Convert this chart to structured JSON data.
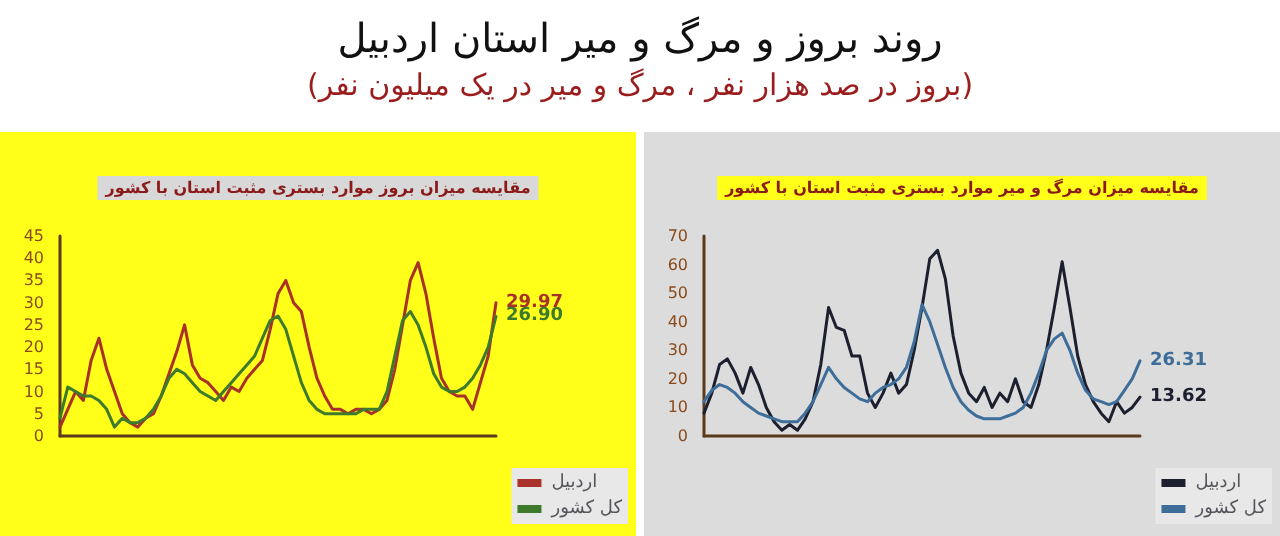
{
  "chart_data": [
    {
      "type": "other",
      "title": "روند بروز و مرگ و میر استان اردبیل",
      "subtitle": "(بروز در صد هزار نفر ، مرگ و میر در یک میلیون نفر)"
    },
    {
      "type": "line",
      "title": "مقایسه میزان بروز موارد بستری مثبت استان با کشور",
      "categories": [
        null,
        null,
        null,
        null,
        null,
        null,
        null,
        null,
        null,
        null,
        null,
        null,
        null,
        null,
        null,
        null,
        null,
        null,
        null,
        null,
        null,
        null,
        null,
        null,
        null,
        null,
        null,
        null,
        null,
        null,
        null,
        null,
        null,
        null,
        null,
        null,
        null,
        null,
        null,
        null,
        null,
        null,
        null,
        null,
        null,
        null,
        null,
        null,
        null,
        null,
        null,
        null,
        null,
        null,
        null,
        null,
        null
      ],
      "series": [
        {
          "name": "اردبیل",
          "color": "#a8322a",
          "values": [
            2,
            6,
            10,
            8,
            17,
            22,
            15,
            10,
            5,
            3,
            2,
            4,
            5,
            9,
            14,
            19,
            25,
            16,
            13,
            12,
            10,
            8,
            11,
            10,
            13,
            15,
            17,
            24,
            32,
            35,
            30,
            28,
            20,
            13,
            9,
            6,
            6,
            5,
            6,
            6,
            5,
            6,
            8,
            15,
            25,
            35,
            39,
            32,
            22,
            13,
            10,
            9,
            9,
            6,
            12,
            18,
            29.97
          ],
          "value_labels": [
            null,
            null,
            null,
            null,
            null,
            null,
            null,
            null,
            null,
            null,
            null,
            null,
            null,
            null,
            null,
            null,
            null,
            null,
            null,
            null,
            null,
            null,
            null,
            null,
            null,
            null,
            null,
            null,
            null,
            null,
            null,
            null,
            null,
            null,
            null,
            null,
            null,
            null,
            null,
            null,
            null,
            null,
            null,
            null,
            null,
            null,
            null,
            null,
            null,
            null,
            null,
            null,
            null,
            null,
            null,
            null,
            "29.97"
          ]
        },
        {
          "name": "کل کشور",
          "color": "#3d7a2c",
          "values": [
            4,
            11,
            10,
            9,
            9,
            8,
            6,
            2,
            4,
            3,
            3,
            4,
            6,
            9,
            13,
            15,
            14,
            12,
            10,
            9,
            8,
            10,
            12,
            14,
            16,
            18,
            22,
            26,
            27,
            24,
            18,
            12,
            8,
            6,
            5,
            5,
            5,
            5,
            5,
            6,
            6,
            6,
            10,
            18,
            26,
            28,
            25,
            20,
            14,
            11,
            10,
            10,
            11,
            13,
            16,
            20,
            26.9
          ],
          "value_labels": [
            null,
            null,
            null,
            null,
            null,
            null,
            null,
            null,
            null,
            null,
            null,
            null,
            null,
            null,
            null,
            null,
            null,
            null,
            null,
            null,
            null,
            null,
            null,
            null,
            null,
            null,
            null,
            null,
            null,
            null,
            null,
            null,
            null,
            null,
            null,
            null,
            null,
            null,
            null,
            null,
            null,
            null,
            null,
            null,
            null,
            null,
            null,
            null,
            null,
            null,
            null,
            null,
            null,
            null,
            null,
            null,
            "26.90"
          ]
        }
      ],
      "ylim": [
        0,
        45
      ],
      "yticks": [
        0,
        5,
        10,
        15,
        20,
        25,
        30,
        35,
        40,
        45
      ],
      "tick_labels": "y",
      "legend": "bottom right",
      "marker": "none",
      "line_style": "solid"
    },
    {
      "type": "line",
      "title": "مقایسه میزان مرگ و میر موارد بستری مثبت استان با کشور",
      "categories": [
        null,
        null,
        null,
        null,
        null,
        null,
        null,
        null,
        null,
        null,
        null,
        null,
        null,
        null,
        null,
        null,
        null,
        null,
        null,
        null,
        null,
        null,
        null,
        null,
        null,
        null,
        null,
        null,
        null,
        null,
        null,
        null,
        null,
        null,
        null,
        null,
        null,
        null,
        null,
        null,
        null,
        null,
        null,
        null,
        null,
        null,
        null,
        null,
        null,
        null,
        null,
        null,
        null,
        null,
        null,
        null,
        null
      ],
      "series": [
        {
          "name": "اردبیل",
          "color": "#1c1f2e",
          "values": [
            8,
            15,
            25,
            27,
            22,
            15,
            24,
            18,
            10,
            5,
            2,
            4,
            2,
            6,
            12,
            25,
            45,
            38,
            37,
            28,
            28,
            15,
            10,
            15,
            22,
            15,
            18,
            30,
            45,
            62,
            65,
            55,
            35,
            22,
            15,
            12,
            17,
            10,
            15,
            12,
            20,
            12,
            10,
            18,
            30,
            45,
            61,
            45,
            28,
            18,
            12,
            8,
            5,
            12,
            8,
            10,
            13.62
          ],
          "value_labels": [
            null,
            null,
            null,
            null,
            null,
            null,
            null,
            null,
            null,
            null,
            null,
            null,
            null,
            null,
            null,
            null,
            null,
            null,
            null,
            null,
            null,
            null,
            null,
            null,
            null,
            null,
            null,
            null,
            null,
            null,
            null,
            null,
            null,
            null,
            null,
            null,
            null,
            null,
            null,
            null,
            null,
            null,
            null,
            null,
            null,
            null,
            null,
            null,
            null,
            null,
            null,
            null,
            null,
            null,
            null,
            null,
            "13.62"
          ]
        },
        {
          "name": "کل کشور",
          "color": "#3d6d98",
          "values": [
            12,
            16,
            18,
            17,
            15,
            12,
            10,
            8,
            7,
            6,
            5,
            5,
            5,
            8,
            12,
            18,
            24,
            20,
            17,
            15,
            13,
            12,
            15,
            17,
            18,
            20,
            24,
            33,
            46,
            40,
            32,
            24,
            17,
            12,
            9,
            7,
            6,
            6,
            6,
            7,
            8,
            10,
            15,
            22,
            30,
            34,
            36,
            30,
            22,
            16,
            13,
            12,
            11,
            12,
            16,
            20,
            26.31
          ],
          "value_labels": [
            null,
            null,
            null,
            null,
            null,
            null,
            null,
            null,
            null,
            null,
            null,
            null,
            null,
            null,
            null,
            null,
            null,
            null,
            null,
            null,
            null,
            null,
            null,
            null,
            null,
            null,
            null,
            null,
            null,
            null,
            null,
            null,
            null,
            null,
            null,
            null,
            null,
            null,
            null,
            null,
            null,
            null,
            null,
            null,
            null,
            null,
            null,
            null,
            null,
            null,
            null,
            null,
            null,
            null,
            null,
            null,
            "26.31"
          ]
        }
      ],
      "ylim": [
        0,
        70
      ],
      "yticks": [
        0,
        10,
        20,
        30,
        40,
        50,
        60,
        70
      ],
      "tick_labels": "y",
      "legend": "bottom right",
      "marker": "none",
      "line_style": "solid"
    }
  ]
}
